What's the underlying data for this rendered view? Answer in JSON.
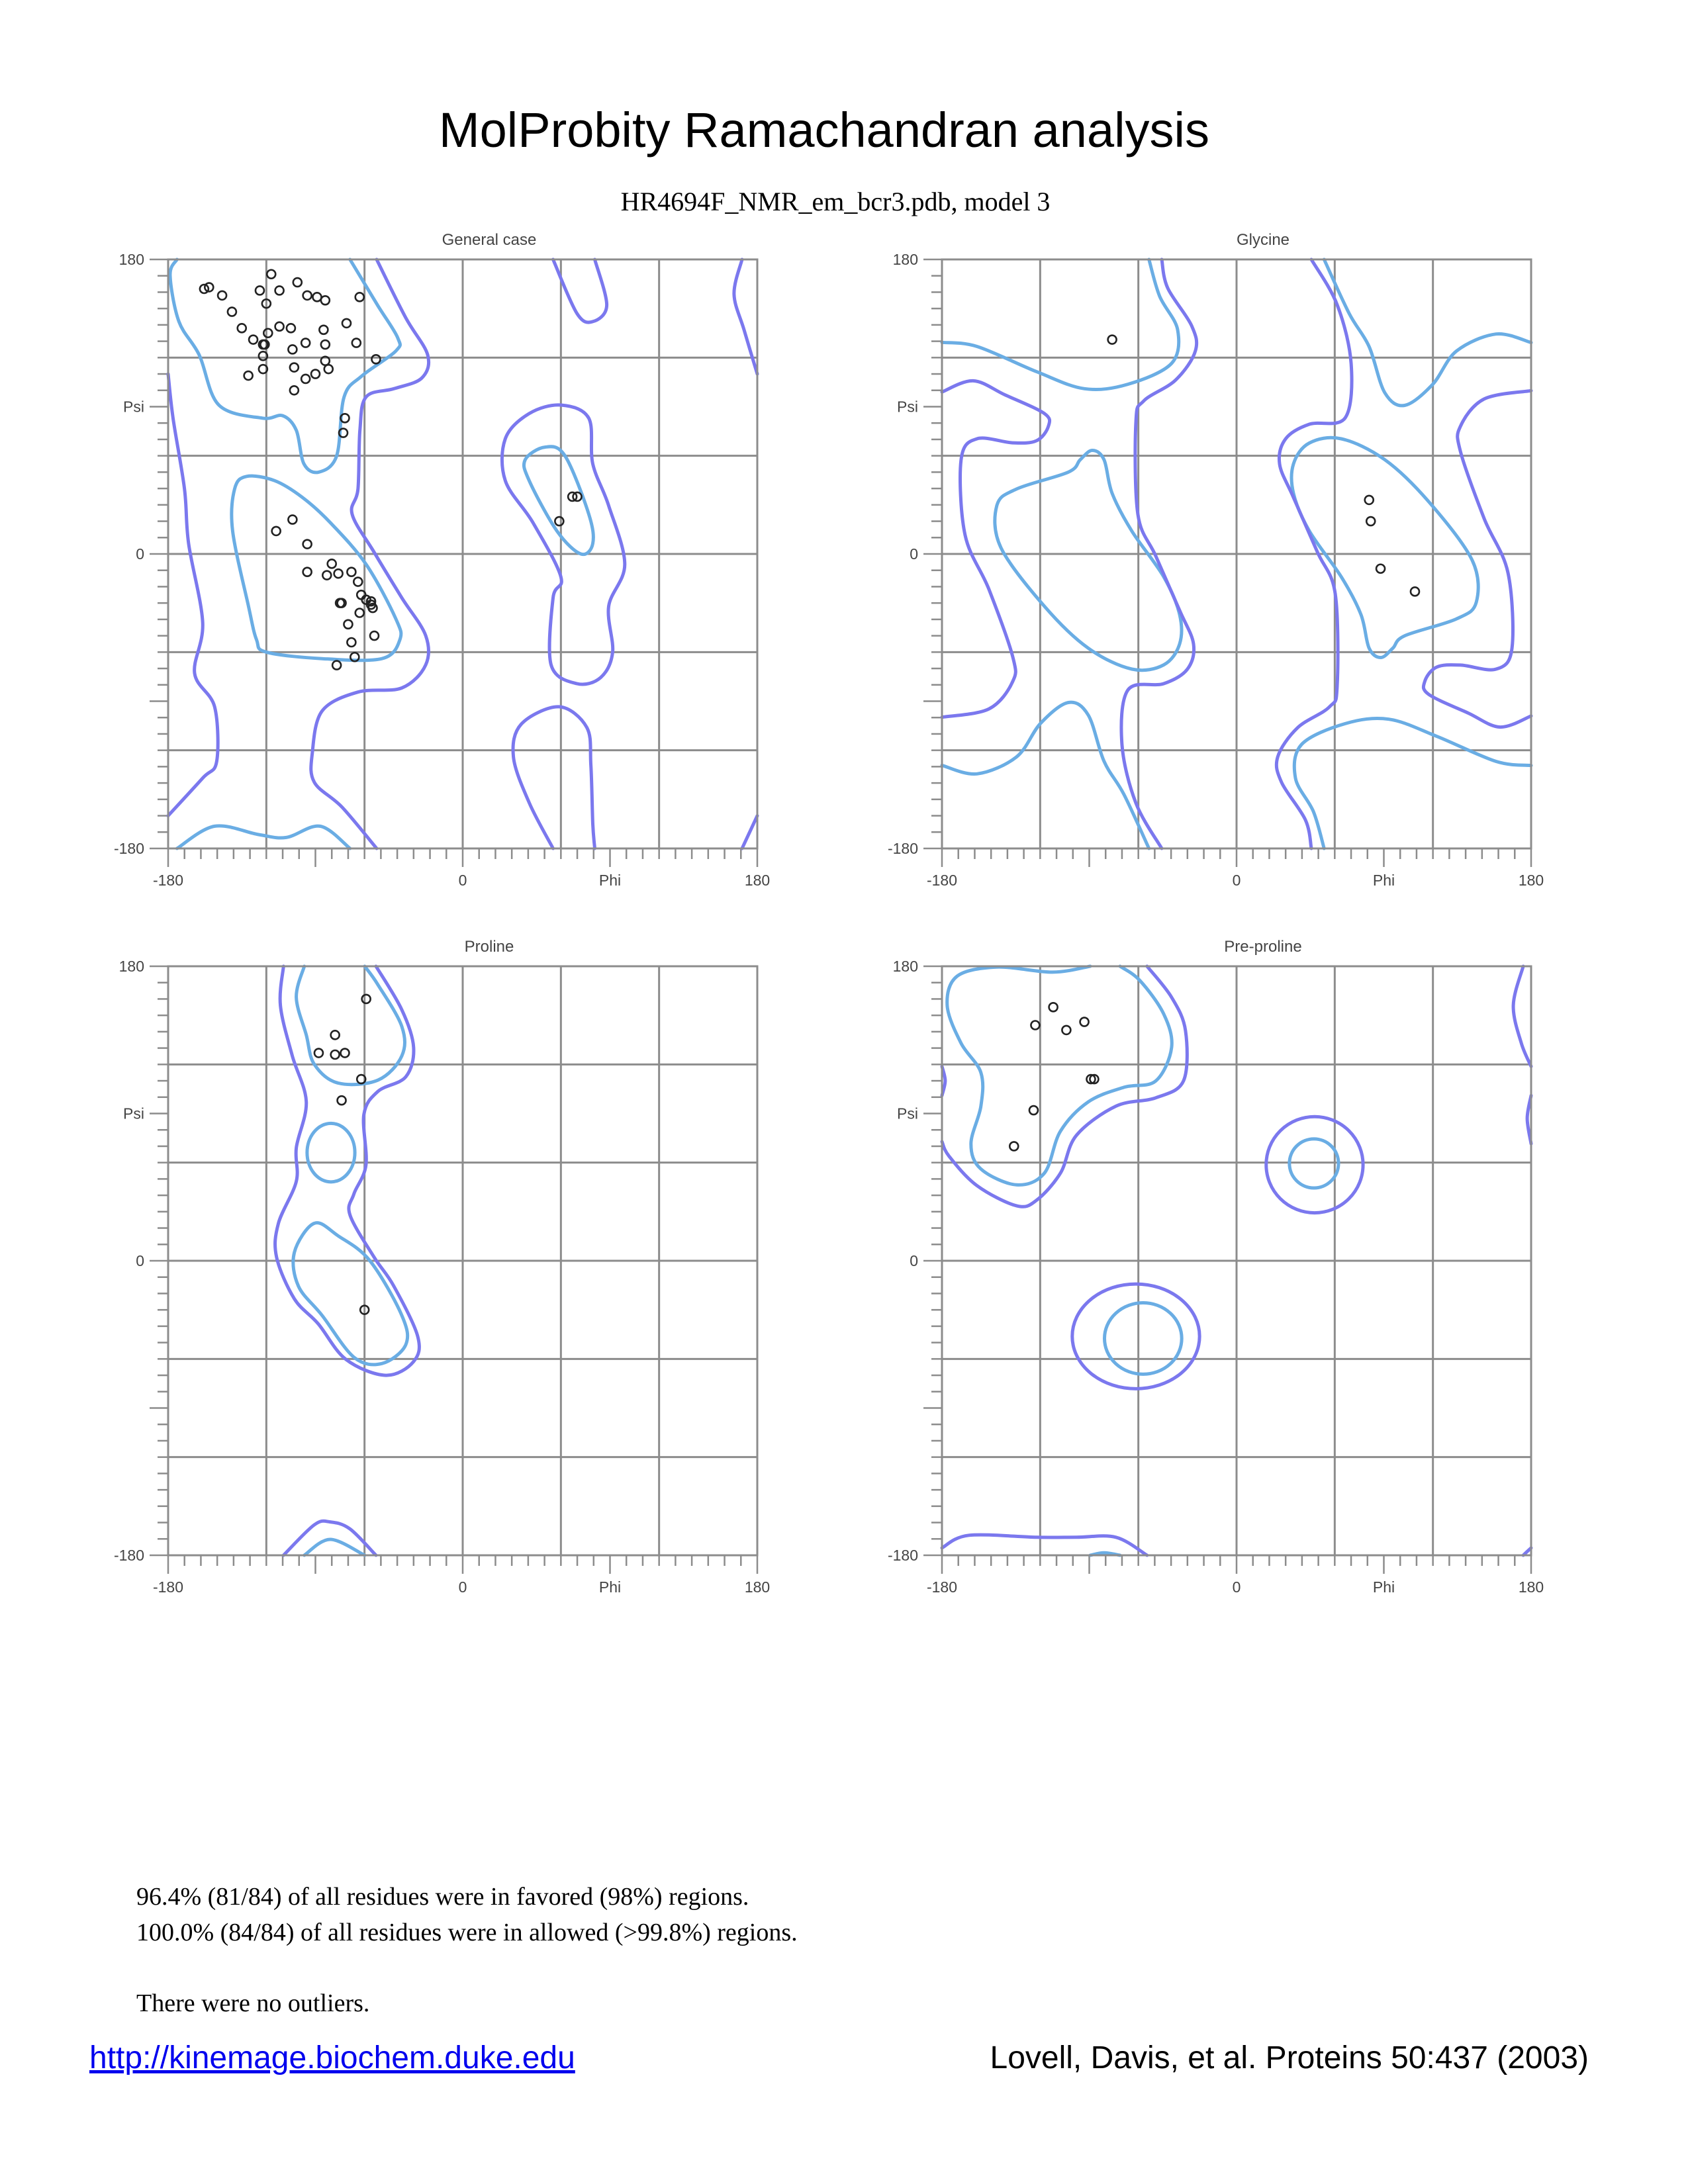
{
  "title": "MolProbity Ramachandran analysis",
  "subtitle": "HR4694F_NMR_em_bcr3.pdb, model 3",
  "colors": {
    "favored_contour": "#6aade4",
    "allowed_contour": "#7b78ee",
    "points": "#222222",
    "grid": "#8c8c8c",
    "link": "#0000ee"
  },
  "chart_data": [
    {
      "type": "scatter",
      "title": "General case",
      "xlabel": "Phi",
      "ylabel": "Psi",
      "xlim": [
        -180,
        180
      ],
      "ylim": [
        -180,
        180
      ],
      "grid": true,
      "grid_step": 60,
      "xtick_labels": [
        "-180",
        "0",
        "180"
      ],
      "ytick_labels": [
        "180",
        "0",
        "-180"
      ],
      "points": [
        [
          -158,
          162
        ],
        [
          -155,
          163
        ],
        [
          -147,
          158
        ],
        [
          -141,
          148
        ],
        [
          -135,
          138
        ],
        [
          -128,
          131
        ],
        [
          -122,
          128
        ],
        [
          -121,
          128
        ],
        [
          -122,
          121
        ],
        [
          -122,
          113
        ],
        [
          -131,
          109
        ],
        [
          -119,
          135
        ],
        [
          -120,
          153
        ],
        [
          -124,
          161
        ],
        [
          -117,
          171
        ],
        [
          -112,
          161
        ],
        [
          -101,
          166
        ],
        [
          -95,
          158
        ],
        [
          -89,
          157
        ],
        [
          -84,
          155
        ],
        [
          -63,
          157
        ],
        [
          -112,
          139
        ],
        [
          -105,
          138
        ],
        [
          -85,
          137
        ],
        [
          -71,
          141
        ],
        [
          -104,
          125
        ],
        [
          -96,
          129
        ],
        [
          -84,
          128
        ],
        [
          -65,
          129
        ],
        [
          -53,
          119
        ],
        [
          -84,
          118
        ],
        [
          -103,
          114
        ],
        [
          -82,
          113
        ],
        [
          -90,
          110
        ],
        [
          -96,
          107
        ],
        [
          -103,
          100
        ],
        [
          -72,
          83
        ],
        [
          -73,
          74
        ],
        [
          -104,
          21
        ],
        [
          -114,
          14
        ],
        [
          -95,
          6
        ],
        [
          -80,
          -6
        ],
        [
          -95,
          -11
        ],
        [
          -83,
          -13
        ],
        [
          -76,
          -12
        ],
        [
          -68,
          -11
        ],
        [
          -64,
          -17
        ],
        [
          -62,
          -25
        ],
        [
          -59,
          -28
        ],
        [
          -56,
          -29
        ],
        [
          -56,
          -31
        ],
        [
          -55,
          -33
        ],
        [
          -75,
          -30
        ],
        [
          -74,
          -30
        ],
        [
          -63,
          -36
        ],
        [
          -70,
          -43
        ],
        [
          -54,
          -50
        ],
        [
          -68,
          -54
        ],
        [
          -66,
          -63
        ],
        [
          -77,
          -68
        ],
        [
          67,
          35
        ],
        [
          70,
          35
        ],
        [
          59,
          20
        ]
      ]
    },
    {
      "type": "scatter",
      "title": "Glycine",
      "xlabel": "Phi",
      "ylabel": "Psi",
      "xlim": [
        -180,
        180
      ],
      "ylim": [
        -180,
        180
      ],
      "grid": true,
      "grid_step": 60,
      "xtick_labels": [
        "-180",
        "0",
        "180"
      ],
      "ytick_labels": [
        "180",
        "0",
        "-180"
      ],
      "points": [
        [
          -76,
          131
        ],
        [
          81,
          33
        ],
        [
          82,
          20
        ],
        [
          88,
          -9
        ],
        [
          109,
          -23
        ]
      ]
    },
    {
      "type": "scatter",
      "title": "Proline",
      "xlabel": "Phi",
      "ylabel": "Psi",
      "xlim": [
        -180,
        180
      ],
      "ylim": [
        -180,
        180
      ],
      "grid": true,
      "grid_step": 60,
      "xtick_labels": [
        "-180",
        "0",
        "180"
      ],
      "ytick_labels": [
        "180",
        "0",
        "-180"
      ],
      "points": [
        [
          -59,
          160
        ],
        [
          -78,
          138
        ],
        [
          -88,
          127
        ],
        [
          -78,
          126
        ],
        [
          -72,
          127
        ],
        [
          -62,
          111
        ],
        [
          -74,
          98
        ],
        [
          -60,
          -30
        ]
      ]
    },
    {
      "type": "scatter",
      "title": "Pre-proline",
      "xlabel": "Phi",
      "ylabel": "Psi",
      "xlim": [
        -180,
        180
      ],
      "ylim": [
        -180,
        180
      ],
      "grid": true,
      "grid_step": 60,
      "xtick_labels": [
        "-180",
        "0",
        "180"
      ],
      "ytick_labels": [
        "180",
        "0",
        "-180"
      ],
      "points": [
        [
          -112,
          155
        ],
        [
          -123,
          144
        ],
        [
          -104,
          141
        ],
        [
          -93,
          146
        ],
        [
          -89,
          111
        ],
        [
          -87,
          111
        ],
        [
          -124,
          92
        ],
        [
          -136,
          70
        ]
      ]
    }
  ],
  "summary": {
    "favored": "96.4% (81/84) of all residues were in favored (98%) regions.",
    "allowed": "100.0% (84/84) of all residues were in allowed (>99.8%) regions.",
    "outliers": "There were no outliers."
  },
  "footer": {
    "link": "http://kinemage.biochem.duke.edu",
    "citation": "Lovell, Davis, et al. Proteins 50:437 (2003)"
  }
}
